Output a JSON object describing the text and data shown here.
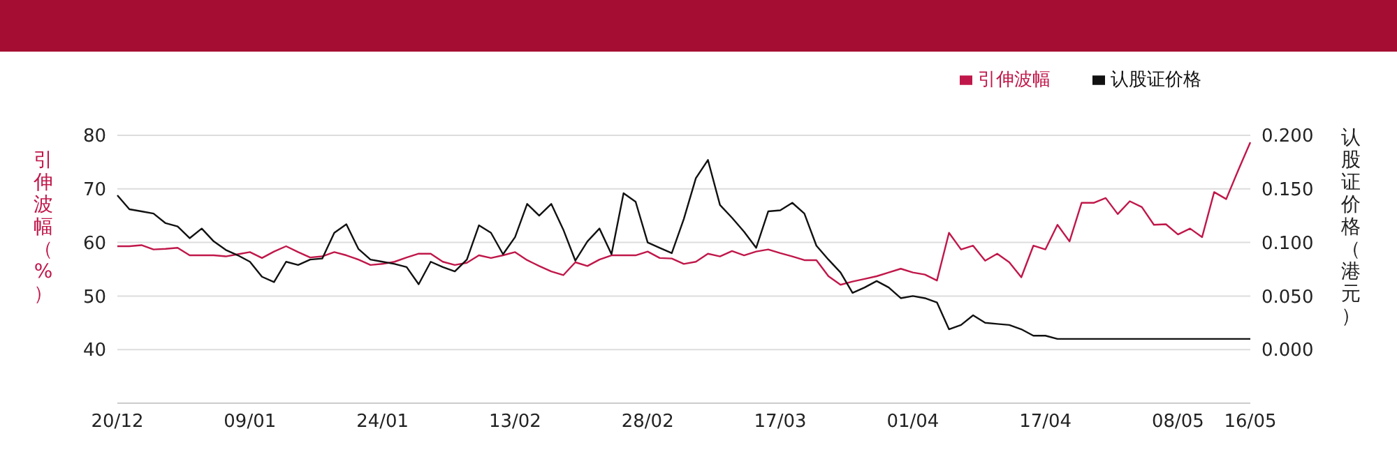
{
  "chart_data": {
    "type": "line",
    "ylabel": "引伸波幅（%）",
    "y2label": "认股证价格（港元）",
    "categories": [
      "20/12",
      null,
      null,
      null,
      null,
      null,
      null,
      null,
      null,
      null,
      null,
      "09/01",
      null,
      null,
      null,
      null,
      null,
      null,
      null,
      null,
      null,
      null,
      "24/01",
      null,
      null,
      null,
      null,
      null,
      null,
      null,
      null,
      null,
      null,
      "13/02",
      null,
      null,
      null,
      null,
      null,
      null,
      null,
      null,
      null,
      null,
      "28/02",
      null,
      null,
      null,
      null,
      null,
      null,
      null,
      null,
      null,
      null,
      "17/03",
      null,
      null,
      null,
      null,
      null,
      null,
      null,
      null,
      null,
      null,
      "01/04",
      null,
      null,
      null,
      null,
      null,
      null,
      null,
      null,
      null,
      null,
      "17/04",
      null,
      null,
      null,
      null,
      null,
      null,
      null,
      null,
      null,
      null,
      "08/05",
      null,
      null,
      null,
      null,
      null,
      "16/05"
    ],
    "series": [
      {
        "name": "引伸波幅",
        "color": "#c0174a",
        "values": [
          59.3,
          59.3,
          59.5,
          58.7,
          58.8,
          59.0,
          57.6,
          57.6,
          57.6,
          57.4,
          57.8,
          58.2,
          57.1,
          58.3,
          59.3,
          58.2,
          57.2,
          57.4,
          58.2,
          57.6,
          56.8,
          55.8,
          56.0,
          56.4,
          57.2,
          57.9,
          57.9,
          56.4,
          55.8,
          56.2,
          57.6,
          57.1,
          57.6,
          58.2,
          56.7,
          55.6,
          54.6,
          53.9,
          56.3,
          55.6,
          56.8,
          57.6,
          57.6,
          57.6,
          58.3,
          57.1,
          57.0,
          56.0,
          56.4,
          57.9,
          57.4,
          58.4,
          57.6,
          58.3,
          58.7,
          58.0,
          57.4,
          56.7,
          56.7,
          53.7,
          52.1,
          52.7,
          53.2,
          53.7,
          54.4,
          55.1,
          54.4,
          54.0,
          52.9,
          61.8,
          58.7,
          59.4,
          56.6,
          57.9,
          56.3,
          53.5,
          59.4,
          58.7,
          63.3,
          60.2,
          67.4,
          67.4,
          68.3,
          65.3,
          67.7,
          66.6,
          63.3,
          63.4,
          61.5,
          62.6,
          61.0,
          69.4,
          68.1,
          73.5,
          78.7
        ]
      },
      {
        "name": "认股证价格",
        "color": "#111111",
        "axis": "y2",
        "values": [
          0.144,
          0.131,
          0.129,
          0.127,
          0.118,
          0.115,
          0.104,
          0.113,
          0.101,
          0.093,
          0.088,
          0.082,
          0.068,
          0.063,
          0.082,
          0.079,
          0.084,
          0.085,
          0.109,
          0.117,
          0.094,
          0.084,
          0.082,
          0.08,
          0.077,
          0.061,
          0.082,
          0.077,
          0.073,
          0.084,
          0.116,
          0.109,
          0.089,
          0.105,
          0.136,
          0.125,
          0.136,
          0.112,
          0.083,
          0.101,
          0.113,
          0.089,
          0.146,
          0.138,
          0.1,
          0.095,
          0.09,
          0.122,
          0.16,
          0.177,
          0.135,
          0.123,
          0.11,
          0.095,
          0.129,
          0.13,
          0.137,
          0.127,
          0.097,
          0.084,
          0.072,
          0.053,
          0.058,
          0.064,
          0.058,
          0.048,
          0.05,
          0.048,
          0.044,
          0.019,
          0.023,
          0.032,
          0.025,
          0.024,
          0.023,
          0.019,
          0.013,
          0.013,
          0.01,
          0.01,
          0.01,
          0.01,
          0.01,
          0.01,
          0.01,
          0.01,
          0.01,
          0.01,
          0.01,
          0.01,
          0.01,
          0.01,
          0.01,
          0.01,
          0.01
        ]
      }
    ],
    "ylim": [
      30,
      80
    ],
    "yticks": [
      40,
      50,
      60,
      70,
      80
    ],
    "y2lim": [
      -0.05,
      0.2
    ],
    "y2ticks": [
      {
        "value": 0,
        "label": "0.000"
      },
      {
        "value": 0.05,
        "label": "0.050"
      },
      {
        "value": 0.1,
        "label": "0.100"
      },
      {
        "value": 0.15,
        "label": "0.150"
      },
      {
        "value": 0.2,
        "label": "0.200"
      }
    ],
    "grid": "y",
    "legend": "top right",
    "marker": "none",
    "line_style": "solid"
  }
}
